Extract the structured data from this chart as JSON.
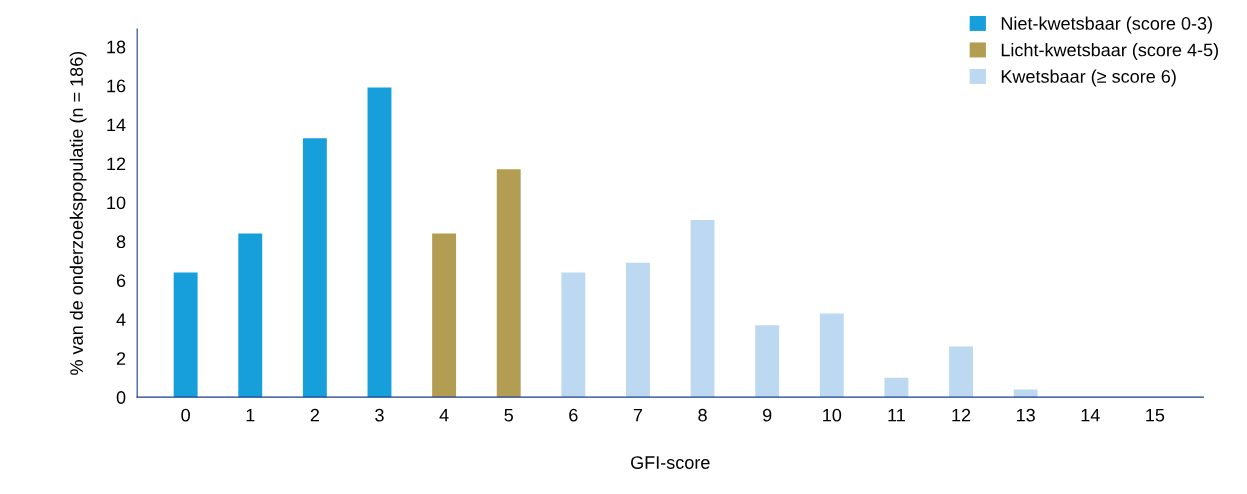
{
  "chart_data": {
    "type": "bar",
    "xlabel": "GFI-score",
    "ylabel": "% van de onderzoekspopulatie (n = 186)",
    "categories": [
      "0",
      "1",
      "2",
      "3",
      "4",
      "5",
      "6",
      "7",
      "8",
      "9",
      "10",
      "11",
      "12",
      "13",
      "14",
      "15"
    ],
    "series": [
      {
        "name": "Niet-kwetsbaar (score 0-3)",
        "color": "#169fdb",
        "values": [
          6.4,
          8.4,
          13.3,
          15.9,
          null,
          null,
          null,
          null,
          null,
          null,
          null,
          null,
          null,
          null,
          null,
          null
        ]
      },
      {
        "name": "Licht-kwetsbaar (score 4-5)",
        "color": "#b39d52",
        "values": [
          null,
          null,
          null,
          null,
          8.4,
          11.7,
          null,
          null,
          null,
          null,
          null,
          null,
          null,
          null,
          null,
          null
        ]
      },
      {
        "name": "Kwetsbaar (≥ score 6)",
        "color": "#bdd9f2",
        "values": [
          null,
          null,
          null,
          null,
          null,
          null,
          6.4,
          6.9,
          9.1,
          3.7,
          4.3,
          1.0,
          2.6,
          0.4,
          0,
          0
        ]
      }
    ],
    "ylim": [
      0,
      18.9
    ],
    "yticks": [
      0,
      2,
      4,
      6,
      8,
      10,
      12,
      14,
      16,
      18
    ],
    "grid": false,
    "legend": "top right"
  }
}
